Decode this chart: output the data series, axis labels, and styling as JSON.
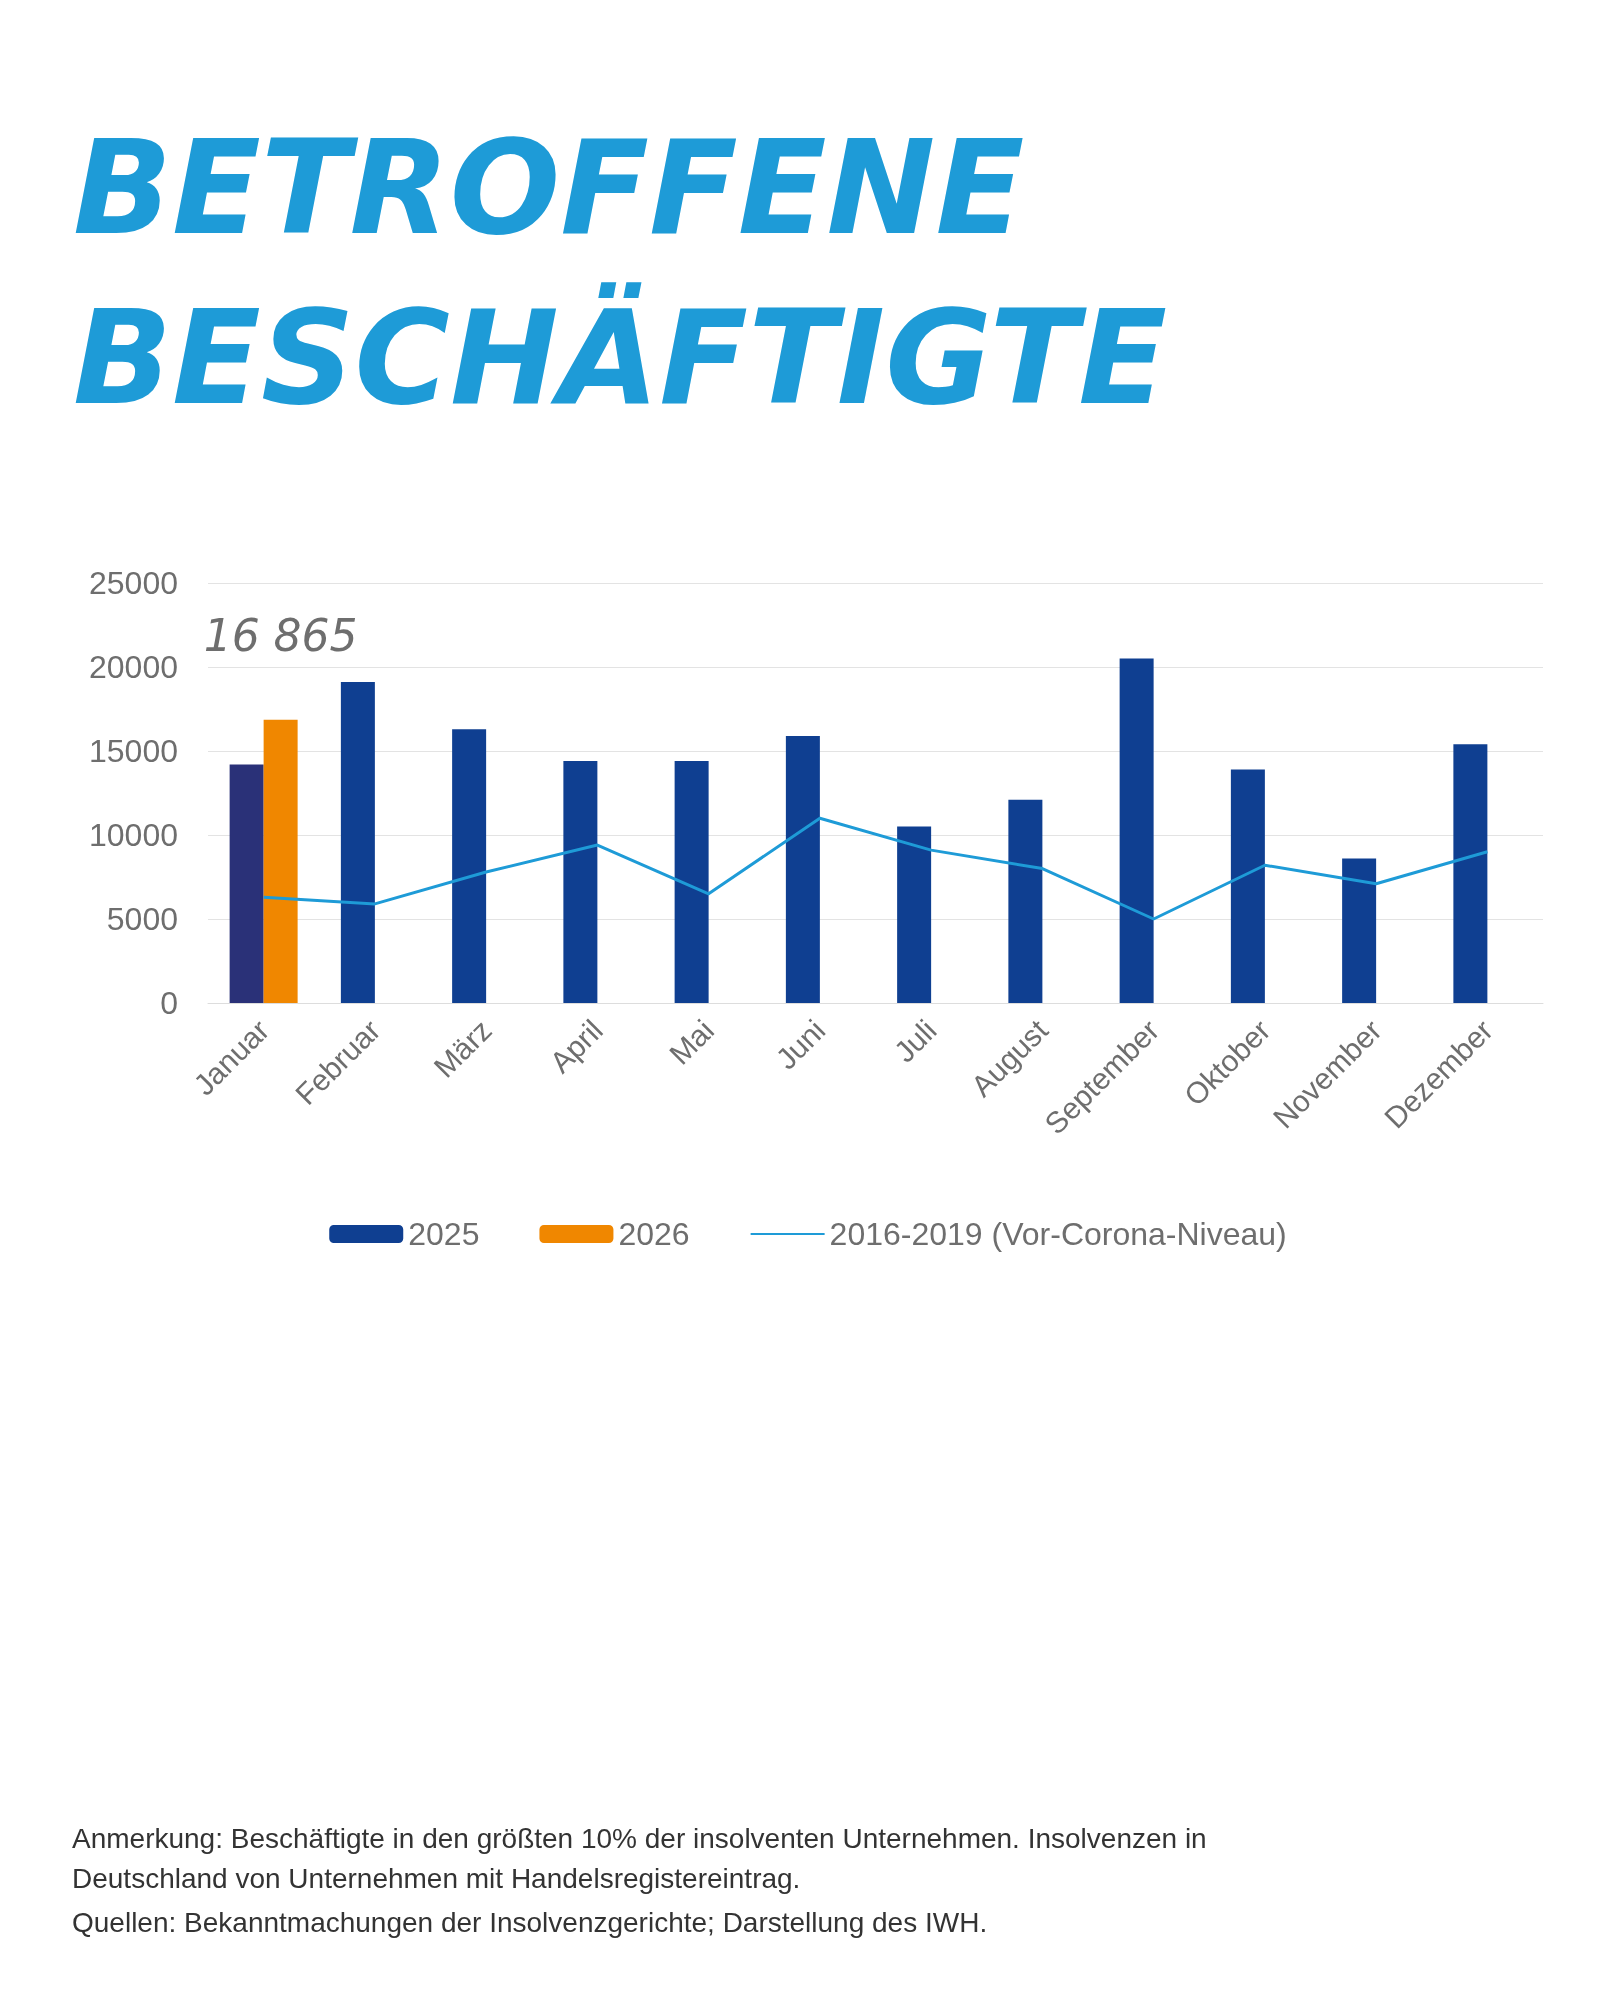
{
  "chart_data": {
    "type": "bar",
    "title": "BETROFFENE BESCHÄFTIGTE",
    "categories": [
      "Januar",
      "Februar",
      "März",
      "April",
      "Mai",
      "Juni",
      "Juli",
      "August",
      "September",
      "Oktober",
      "November",
      "Dezember"
    ],
    "series": [
      {
        "name": "2025",
        "color": "#0f3f91",
        "colors": [
          "#2a3178",
          "#0f3f91",
          "#0f3f91",
          "#0f3f91",
          "#0f3f91",
          "#0f3f91",
          "#0f3f91",
          "#0f3f91",
          "#0f3f91",
          "#0f3f91",
          "#0f3f91",
          "#0f3f91"
        ],
        "values": [
          14200,
          19100,
          16300,
          14400,
          14400,
          15900,
          10500,
          12100,
          20500,
          13900,
          8600,
          15400
        ]
      },
      {
        "name": "2026",
        "color": "#f08700",
        "values": [
          16865,
          null,
          null,
          null,
          null,
          null,
          null,
          null,
          null,
          null,
          null,
          null
        ],
        "value_labels": [
          "16 865",
          null,
          null,
          null,
          null,
          null,
          null,
          null,
          null,
          null,
          null,
          null
        ]
      },
      {
        "name": "2016-2019 (Vor-Corona-Niveau)",
        "type": "line",
        "color": "#1e9bd7",
        "marker": "none",
        "values": [
          6300,
          5900,
          7800,
          9400,
          6500,
          11000,
          9100,
          8000,
          5000,
          8200,
          7100,
          9000
        ]
      }
    ],
    "ylim": [
      0,
      25000
    ],
    "yticks": [
      0,
      5000,
      10000,
      15000,
      20000,
      25000
    ],
    "grid": "y",
    "legend": "bottom",
    "annotations": [
      "Anmerkung: Beschäftigte in den größten 10% der insolventen Unternehmen. Insolvenzen in Deutschland von Unternehmen mit Handelsregistereintrag.",
      "Quellen: Bekanntmachungen der Insolvenzgerichte; Darstellung des IWH."
    ]
  }
}
